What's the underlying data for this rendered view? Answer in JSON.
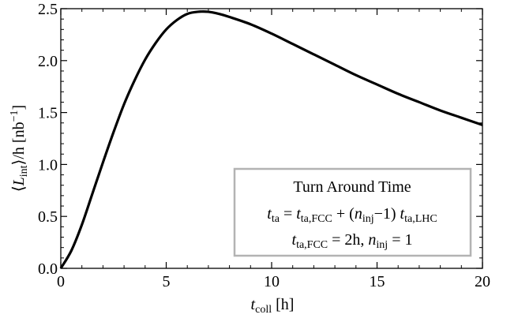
{
  "chart_data": {
    "type": "line",
    "title": "",
    "xlabel": {
      "main": "t",
      "sub": "coll",
      "unit": "[h]"
    },
    "ylabel": {
      "l": "⟨",
      "main": "L",
      "sub": "int",
      "r": "⟩/h [nb",
      "sup": "−1",
      "end": "]"
    },
    "xlim": [
      0,
      20
    ],
    "ylim": [
      0,
      2.5
    ],
    "xticks": [
      0,
      5,
      10,
      15,
      20
    ],
    "xtick_labels": [
      "0",
      "5",
      "10",
      "15",
      "20"
    ],
    "yticks": [
      0,
      0.5,
      1.0,
      1.5,
      2.0,
      2.5
    ],
    "ytick_labels": [
      "0.0",
      "0.5",
      "1.0",
      "1.5",
      "2.0",
      "2.5"
    ],
    "grid": false,
    "series": [
      {
        "name": "",
        "color": "#000000",
        "x": [
          0,
          0.5,
          1,
          1.5,
          2,
          2.5,
          3,
          3.5,
          4,
          4.5,
          5,
          5.5,
          6,
          6.5,
          7,
          7.5,
          8,
          9,
          10,
          11,
          12,
          13,
          14,
          15,
          16,
          17,
          18,
          19,
          20
        ],
        "y": [
          0,
          0.17,
          0.42,
          0.72,
          1.02,
          1.31,
          1.58,
          1.81,
          2.01,
          2.17,
          2.3,
          2.39,
          2.45,
          2.47,
          2.47,
          2.45,
          2.42,
          2.35,
          2.26,
          2.16,
          2.06,
          1.96,
          1.86,
          1.77,
          1.68,
          1.6,
          1.52,
          1.45,
          1.38
        ]
      }
    ],
    "legend": {
      "placement": "bottom-right",
      "title": "Turn Around Time",
      "line1": {
        "a": "t",
        "a_sub": "ta",
        "eq": " = ",
        "b": "t",
        "b_sub": "ta,FCC",
        "plus": " + (",
        "c": "n",
        "c_sub": "inj",
        "minus": "−1) ",
        "d": "t",
        "d_sub": "ta,LHC"
      },
      "line2": {
        "a": "t",
        "a_sub": "ta,FCC",
        "eq": " = 2h, ",
        "b": "n",
        "b_sub": "inj",
        "val": " = 1"
      }
    }
  }
}
